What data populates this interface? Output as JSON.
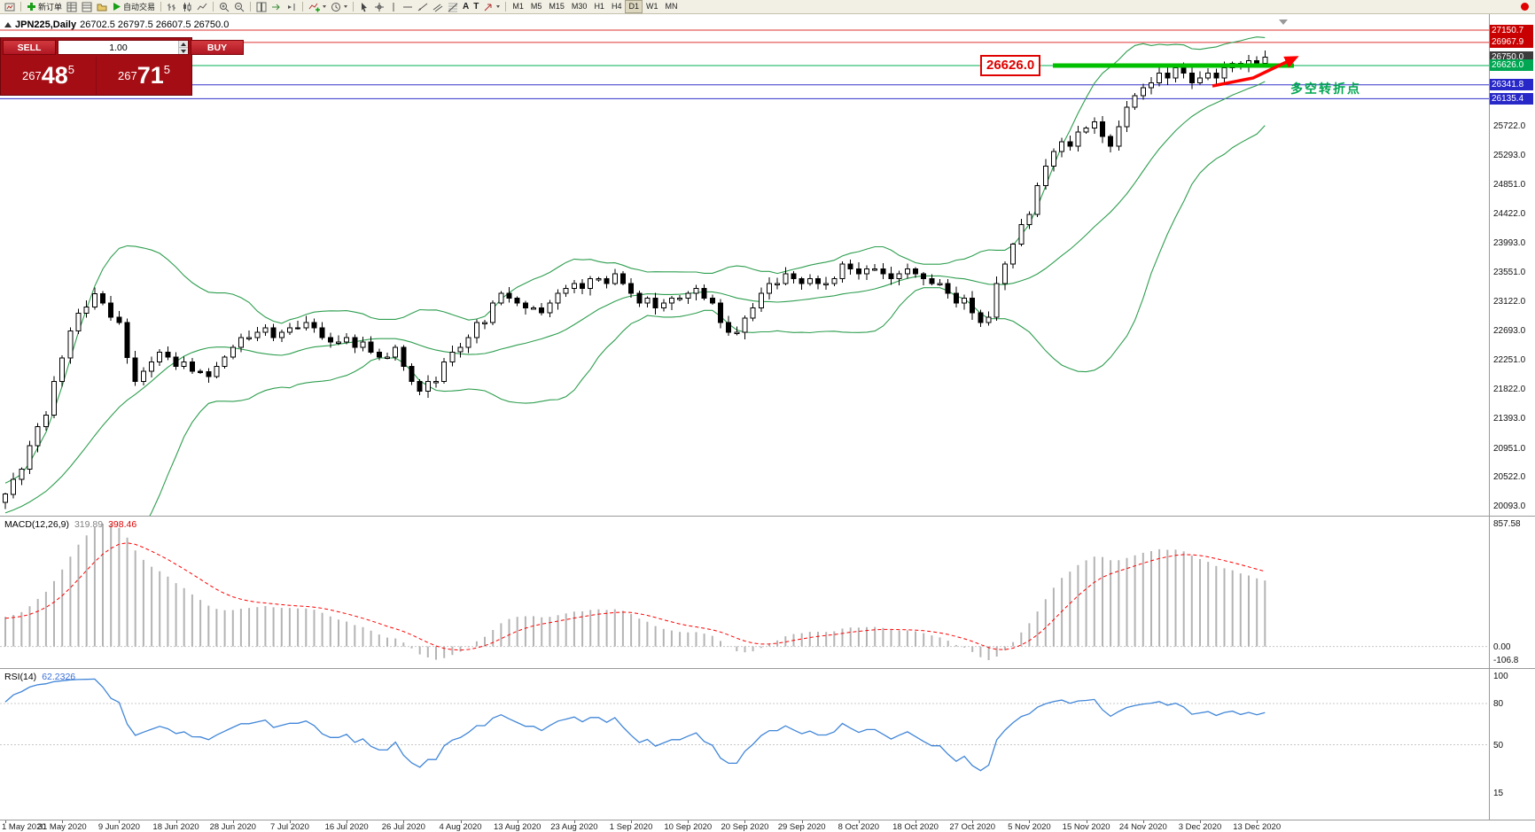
{
  "toolbar": {
    "new_order_label": "新订单",
    "auto_trading_label": "自动交易",
    "timeframes": [
      "M1",
      "M5",
      "M15",
      "M30",
      "H1",
      "H4",
      "D1",
      "W1",
      "MN"
    ],
    "active_timeframe": "D1",
    "text_tool_glyph": "A",
    "label_tool_glyph": "T"
  },
  "chart": {
    "title": "JPN225,Daily",
    "ohlc": "26702.5 26797.5 26607.5 26750.0"
  },
  "trade_panel": {
    "sell_label": "SELL",
    "buy_label": "BUY",
    "volume": "1.00",
    "sell_price": {
      "value": "26748.5",
      "prefix": "267",
      "big": "48",
      "sup": "5"
    },
    "buy_price": {
      "value": "26771.5",
      "prefix": "267",
      "big": "71",
      "sup": "5"
    }
  },
  "annotations": {
    "level_label": "26626.0",
    "level_value": 26626.0,
    "note_text": "多空转折点"
  },
  "price_axis": {
    "special": [
      {
        "text": "27150.7",
        "value": 27150.7,
        "box": "#c80000",
        "line": "#e03030"
      },
      {
        "text": "26967.9",
        "value": 26967.9,
        "box": "#c80000",
        "line": "#e03030"
      },
      {
        "text": "26750.0",
        "value": 26750.0,
        "box": "#3c3c3c",
        "line": null
      },
      {
        "text": "26626.0",
        "value": 26626.0,
        "box": "#00a651",
        "line": "#00b050"
      },
      {
        "text": "26341.8",
        "value": 26341.8,
        "box": "#2828c8",
        "line": "#3333cc"
      },
      {
        "text": "26135.4",
        "value": 26135.4,
        "box": "#2828c8",
        "line": "#3333cc"
      }
    ],
    "gridlines": [
      25722.0,
      25293.0,
      24851.0,
      24422.0,
      23993.0,
      23551.0,
      23122.0,
      22693.0,
      22251.0,
      21822.0,
      21393.0,
      20951.0,
      20522.0,
      20093.0
    ]
  },
  "macd": {
    "label": "MACD(12,26,9)",
    "value_main": "319.89",
    "value_signal": "398.46",
    "axis": [
      "857.58",
      "0.00",
      "-106.8"
    ]
  },
  "rsi": {
    "label": "RSI(14)",
    "value": "62.2326",
    "axis": [
      "100",
      "80",
      "50",
      "15"
    ],
    "levels": [
      80,
      50
    ]
  },
  "colors": {
    "bull_candle": "#ffffff",
    "bear_candle": "#000000",
    "candle_outline": "#000000",
    "bollinger": "#2e9e4f",
    "macd_histogram": "#b4b4b4",
    "macd_signal": "#ff0000",
    "rsi_line": "#4186d8",
    "annotation_green": "#00c000",
    "annotation_red": "#ff0000",
    "panel_red": "#a50d14"
  },
  "chart_data": {
    "type": "candlestick",
    "symbol": "JPN225",
    "timeframe": "Daily",
    "y_axis": {
      "min": 20093.0,
      "max": 27150.7
    },
    "label_every": 7,
    "x_labels": [
      "1 May 2020",
      "31 May 2020",
      "9 Jun 2020",
      "18 Jun 2020",
      "28 Jun 2020",
      "7 Jul 2020",
      "16 Jul 2020",
      "26 Jul 2020",
      "4 Aug 2020",
      "13 Aug 2020",
      "23 Aug 2020",
      "1 Sep 2020",
      "10 Sep 2020",
      "20 Sep 2020",
      "29 Sep 2020",
      "8 Oct 2020",
      "18 Oct 2020",
      "27 Oct 2020",
      "5 Nov 2020",
      "15 Nov 2020",
      "24 Nov 2020",
      "3 Dec 2020",
      "13 Dec 2020"
    ],
    "closes": [
      20280,
      20500,
      20650,
      21000,
      21280,
      21450,
      21950,
      22300,
      22700,
      22960,
      23050,
      23250,
      23110,
      22900,
      22820,
      22300,
      21950,
      22100,
      22240,
      22380,
      22310,
      22170,
      22240,
      22100,
      22095,
      22020,
      22170,
      22310,
      22455,
      22600,
      22600,
      22675,
      22745,
      22600,
      22675,
      22745,
      22745,
      22820,
      22745,
      22600,
      22530,
      22530,
      22600,
      22455,
      22530,
      22385,
      22310,
      22310,
      22455,
      22170,
      21950,
      21805,
      21950,
      21950,
      22240,
      22385,
      22455,
      22600,
      22820,
      22820,
      23110,
      23255,
      23180,
      23110,
      23040,
      23040,
      22965,
      23110,
      23255,
      23325,
      23400,
      23325,
      23470,
      23470,
      23400,
      23545,
      23400,
      23255,
      23110,
      23180,
      23040,
      23110,
      23180,
      23180,
      23255,
      23325,
      23180,
      23110,
      22820,
      22675,
      22675,
      22890,
      23040,
      23255,
      23400,
      23400,
      23545,
      23470,
      23400,
      23470,
      23400,
      23400,
      23470,
      23690,
      23615,
      23545,
      23615,
      23615,
      23545,
      23470,
      23545,
      23615,
      23545,
      23470,
      23400,
      23400,
      23255,
      23110,
      23180,
      22965,
      22820,
      22900,
      23400,
      23690,
      23980,
      24270,
      24420,
      24850,
      25140,
      25355,
      25500,
      25430,
      25645,
      25700,
      25790,
      25575,
      25430,
      25720,
      26010,
      26180,
      26300,
      26370,
      26515,
      26440,
      26590,
      26515,
      26370,
      26440,
      26515,
      26440,
      26590,
      26660,
      26600,
      26700,
      26660,
      26750
    ],
    "warmup_closes": [
      19300,
      19360,
      19420,
      19380,
      19500,
      19560,
      19620,
      19580,
      19700,
      19760,
      19820,
      19780,
      19900,
      19960,
      20020,
      19980,
      20060,
      20120,
      20180,
      20140,
      20200,
      20240,
      20190,
      20250,
      20270
    ],
    "indicators": {
      "bollinger": {
        "period": 20,
        "deviation": 2
      },
      "macd": {
        "fast": 12,
        "slow": 26,
        "signal": 9
      },
      "rsi": {
        "period": 14
      }
    }
  }
}
